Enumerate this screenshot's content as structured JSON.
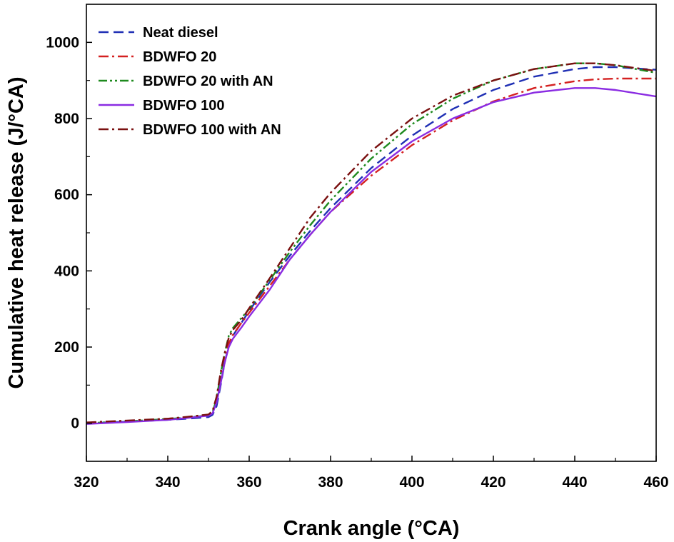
{
  "chart_data": {
    "type": "line",
    "xlabel": "Crank angle (°CA)",
    "ylabel": "Cumulative heat release (J/°CA)",
    "xlim": [
      320,
      460
    ],
    "ylim": [
      -100,
      1100
    ],
    "xticks": [
      320,
      340,
      360,
      380,
      400,
      420,
      440,
      460
    ],
    "yticks": [
      0,
      200,
      400,
      600,
      800,
      1000
    ],
    "grid": false,
    "legend_position": "top-left",
    "series": [
      {
        "name": "Neat diesel",
        "color": "#1f2fb4",
        "dash": "dash",
        "x": [
          320,
          330,
          340,
          345,
          350,
          351,
          352,
          353,
          354,
          355,
          356,
          358,
          360,
          365,
          370,
          375,
          380,
          390,
          400,
          410,
          420,
          430,
          440,
          445,
          450,
          460
        ],
        "y": [
          0,
          4,
          9,
          12,
          16,
          22,
          45,
          100,
          160,
          205,
          230,
          262,
          295,
          370,
          440,
          505,
          565,
          670,
          755,
          825,
          875,
          910,
          930,
          935,
          935,
          928
        ]
      },
      {
        "name": "BDWFO 20",
        "color": "#d42020",
        "dash": "dashdot",
        "x": [
          320,
          330,
          340,
          345,
          350,
          351,
          352,
          353,
          354,
          355,
          356,
          358,
          360,
          365,
          370,
          375,
          380,
          390,
          400,
          410,
          420,
          430,
          440,
          445,
          450,
          460
        ],
        "y": [
          0,
          6,
          12,
          16,
          22,
          30,
          60,
          115,
          170,
          210,
          232,
          262,
          290,
          360,
          430,
          495,
          555,
          650,
          730,
          795,
          845,
          880,
          898,
          903,
          905,
          905
        ]
      },
      {
        "name": "BDWFO 20 with AN",
        "color": "#1e8a1e",
        "dash": "dashdotdot",
        "x": [
          320,
          330,
          340,
          345,
          350,
          351,
          352,
          353,
          354,
          355,
          356,
          358,
          360,
          365,
          370,
          375,
          380,
          390,
          400,
          410,
          420,
          430,
          440,
          445,
          450,
          460
        ],
        "y": [
          0,
          5,
          11,
          15,
          21,
          28,
          65,
          130,
          185,
          230,
          250,
          275,
          300,
          375,
          450,
          520,
          585,
          695,
          785,
          852,
          900,
          930,
          945,
          945,
          940,
          920
        ]
      },
      {
        "name": "BDWFO 100",
        "color": "#8a2be2",
        "dash": "solid",
        "x": [
          320,
          330,
          340,
          345,
          350,
          351,
          352,
          353,
          354,
          355,
          356,
          358,
          360,
          365,
          370,
          375,
          380,
          390,
          400,
          410,
          420,
          430,
          440,
          445,
          450,
          460
        ],
        "y": [
          -2,
          3,
          9,
          14,
          20,
          26,
          55,
          105,
          160,
          200,
          222,
          250,
          280,
          350,
          430,
          495,
          555,
          660,
          740,
          800,
          843,
          868,
          880,
          880,
          875,
          858
        ]
      },
      {
        "name": "BDWFO 100 with AN",
        "color": "#7a1010",
        "dash": "dashdot",
        "x": [
          320,
          330,
          340,
          345,
          350,
          351,
          352,
          353,
          354,
          355,
          356,
          358,
          360,
          365,
          370,
          375,
          380,
          390,
          400,
          410,
          420,
          430,
          440,
          445,
          450,
          460
        ],
        "y": [
          2,
          7,
          12,
          17,
          23,
          32,
          70,
          135,
          185,
          225,
          245,
          270,
          302,
          380,
          460,
          540,
          605,
          715,
          800,
          860,
          900,
          930,
          945,
          945,
          940,
          925
        ]
      }
    ]
  }
}
